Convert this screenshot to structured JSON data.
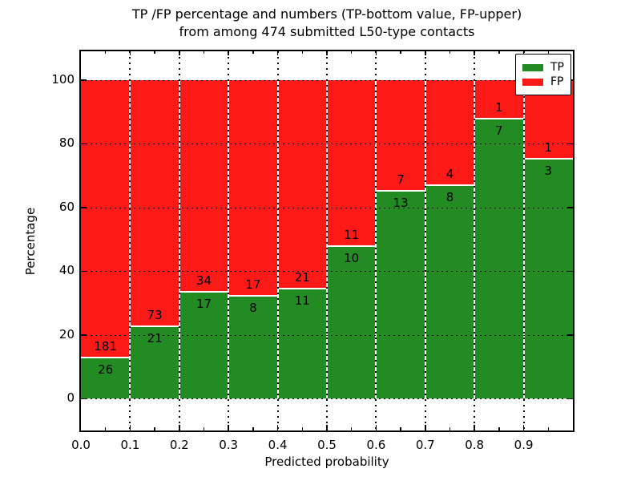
{
  "figure": {
    "title_line1": "TP /FP percentage and numbers (TP-bottom value, FP-upper)",
    "title_line2": "from among 474 submitted L50-type contacts"
  },
  "legend": {
    "position": "upper right",
    "items": [
      {
        "label": "TP",
        "color": "#228B22"
      },
      {
        "label": "FP",
        "color": "#FD1A16"
      }
    ]
  },
  "chart_data": {
    "type": "bar",
    "stacked": true,
    "normalized_to_percent": true,
    "title": "TP /FP percentage and numbers (TP-bottom value, FP-upper) from among 474 submitted L50-type contacts",
    "xlabel": "Predicted probability",
    "ylabel": "Percentage",
    "total_submitted": 474,
    "x_tick_labels": [
      "0.0",
      "0.1",
      "0.2",
      "0.3",
      "0.4",
      "0.5",
      "0.6",
      "0.7",
      "0.8",
      "0.9"
    ],
    "y_ticks": [
      0,
      20,
      40,
      60,
      80,
      100
    ],
    "xlim": [
      0.0,
      1.0
    ],
    "ylim": [
      -10,
      109
    ],
    "grid": true,
    "bins": [
      [
        0.0,
        0.1
      ],
      [
        0.1,
        0.2
      ],
      [
        0.2,
        0.3
      ],
      [
        0.3,
        0.4
      ],
      [
        0.4,
        0.5
      ],
      [
        0.5,
        0.6
      ],
      [
        0.6,
        0.7
      ],
      [
        0.7,
        0.8
      ],
      [
        0.8,
        0.9
      ],
      [
        0.9,
        1.0
      ]
    ],
    "series": [
      {
        "name": "TP",
        "color": "#228B22",
        "counts": [
          26,
          21,
          17,
          8,
          11,
          10,
          13,
          8,
          7,
          3
        ]
      },
      {
        "name": "FP",
        "color": "#FD1A16",
        "counts": [
          181,
          73,
          34,
          17,
          21,
          11,
          7,
          4,
          1,
          1
        ]
      }
    ],
    "tp_percent_of_bin": [
      12.6,
      22.3,
      33.3,
      32.0,
      34.4,
      47.6,
      65.0,
      66.7,
      87.5,
      75.0
    ]
  }
}
